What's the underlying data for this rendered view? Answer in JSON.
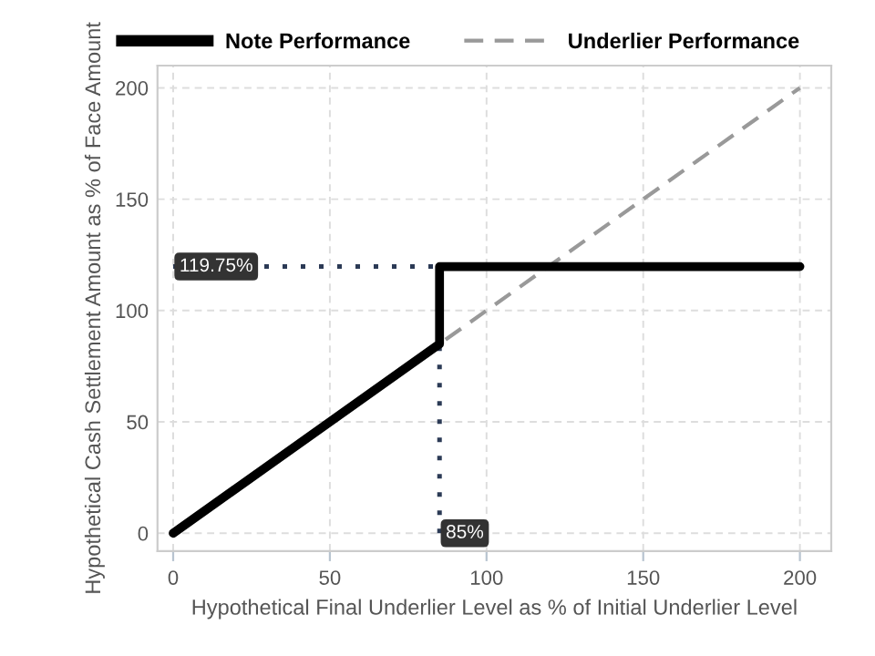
{
  "chart_data": {
    "type": "line",
    "xlabel": "Hypothetical Final Underlier Level as % of Initial Underlier Level",
    "ylabel": "Hypothetical Cash Settlement Amount as % of Face Amount",
    "series": [
      {
        "name": "Underlier Performance",
        "color": "#999999",
        "line_style": "dashed",
        "x": [
          0,
          200
        ],
        "values": [
          0,
          200
        ]
      },
      {
        "name": "Note Performance",
        "color": "#000000",
        "line_style": "solid",
        "x": [
          0,
          85,
          85,
          200
        ],
        "values": [
          0,
          85,
          119.75,
          119.75
        ]
      },
      {
        "color": "#2b3a55",
        "line_style": "dotted",
        "x": [
          0,
          85
        ],
        "values": [
          119.75,
          119.75
        ]
      },
      {
        "color": "#2b3a55",
        "line_style": "dotted",
        "x": [
          85,
          85
        ],
        "values": [
          0,
          119.75
        ]
      }
    ],
    "annotations": [
      {
        "text": "119.75%",
        "x": 0,
        "y": 119.75
      },
      {
        "text": "85%",
        "x": 85,
        "y": 0
      }
    ],
    "xlim": [
      -5,
      210
    ],
    "ylim": [
      -8,
      210
    ],
    "xticks": [
      0,
      50,
      100,
      150,
      200
    ],
    "yticks": [
      0,
      50,
      100,
      150,
      200
    ],
    "grid": true,
    "legend": "top",
    "marker": "none"
  }
}
